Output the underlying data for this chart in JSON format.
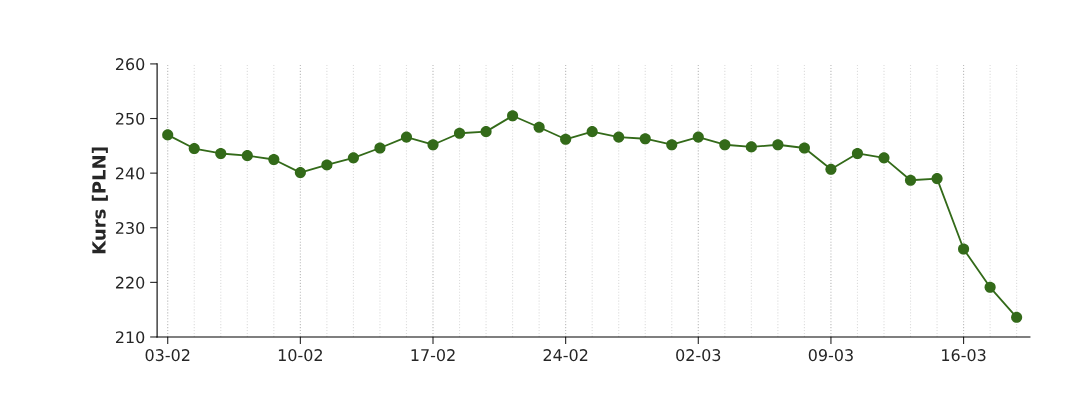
{
  "chart_data": {
    "type": "line",
    "ylabel": "Kurs [PLN]",
    "categories": [
      "03-02",
      null,
      null,
      null,
      null,
      "10-02",
      null,
      null,
      null,
      null,
      "17-02",
      null,
      null,
      null,
      null,
      "24-02",
      null,
      null,
      null,
      null,
      "02-03",
      null,
      null,
      null,
      null,
      "09-03",
      null,
      null,
      null,
      null,
      "16-03",
      null,
      null
    ],
    "series": [
      {
        "color": "#336a19",
        "values": [
          247.0,
          244.5,
          243.6,
          243.2,
          242.5,
          240.1,
          241.5,
          242.8,
          244.6,
          246.6,
          245.2,
          247.3,
          247.6,
          250.5,
          248.4,
          246.2,
          247.6,
          246.6,
          246.3,
          245.2,
          246.6,
          245.2,
          244.8,
          245.2,
          244.6,
          240.7,
          243.6,
          242.8,
          238.7,
          239.0,
          226.1,
          219.1,
          213.6
        ]
      }
    ],
    "ylim": [
      210,
      260
    ],
    "yticks": [
      210,
      220,
      230,
      240,
      250,
      260
    ],
    "grid": "x",
    "marker": "circle",
    "line_style": "solid"
  }
}
